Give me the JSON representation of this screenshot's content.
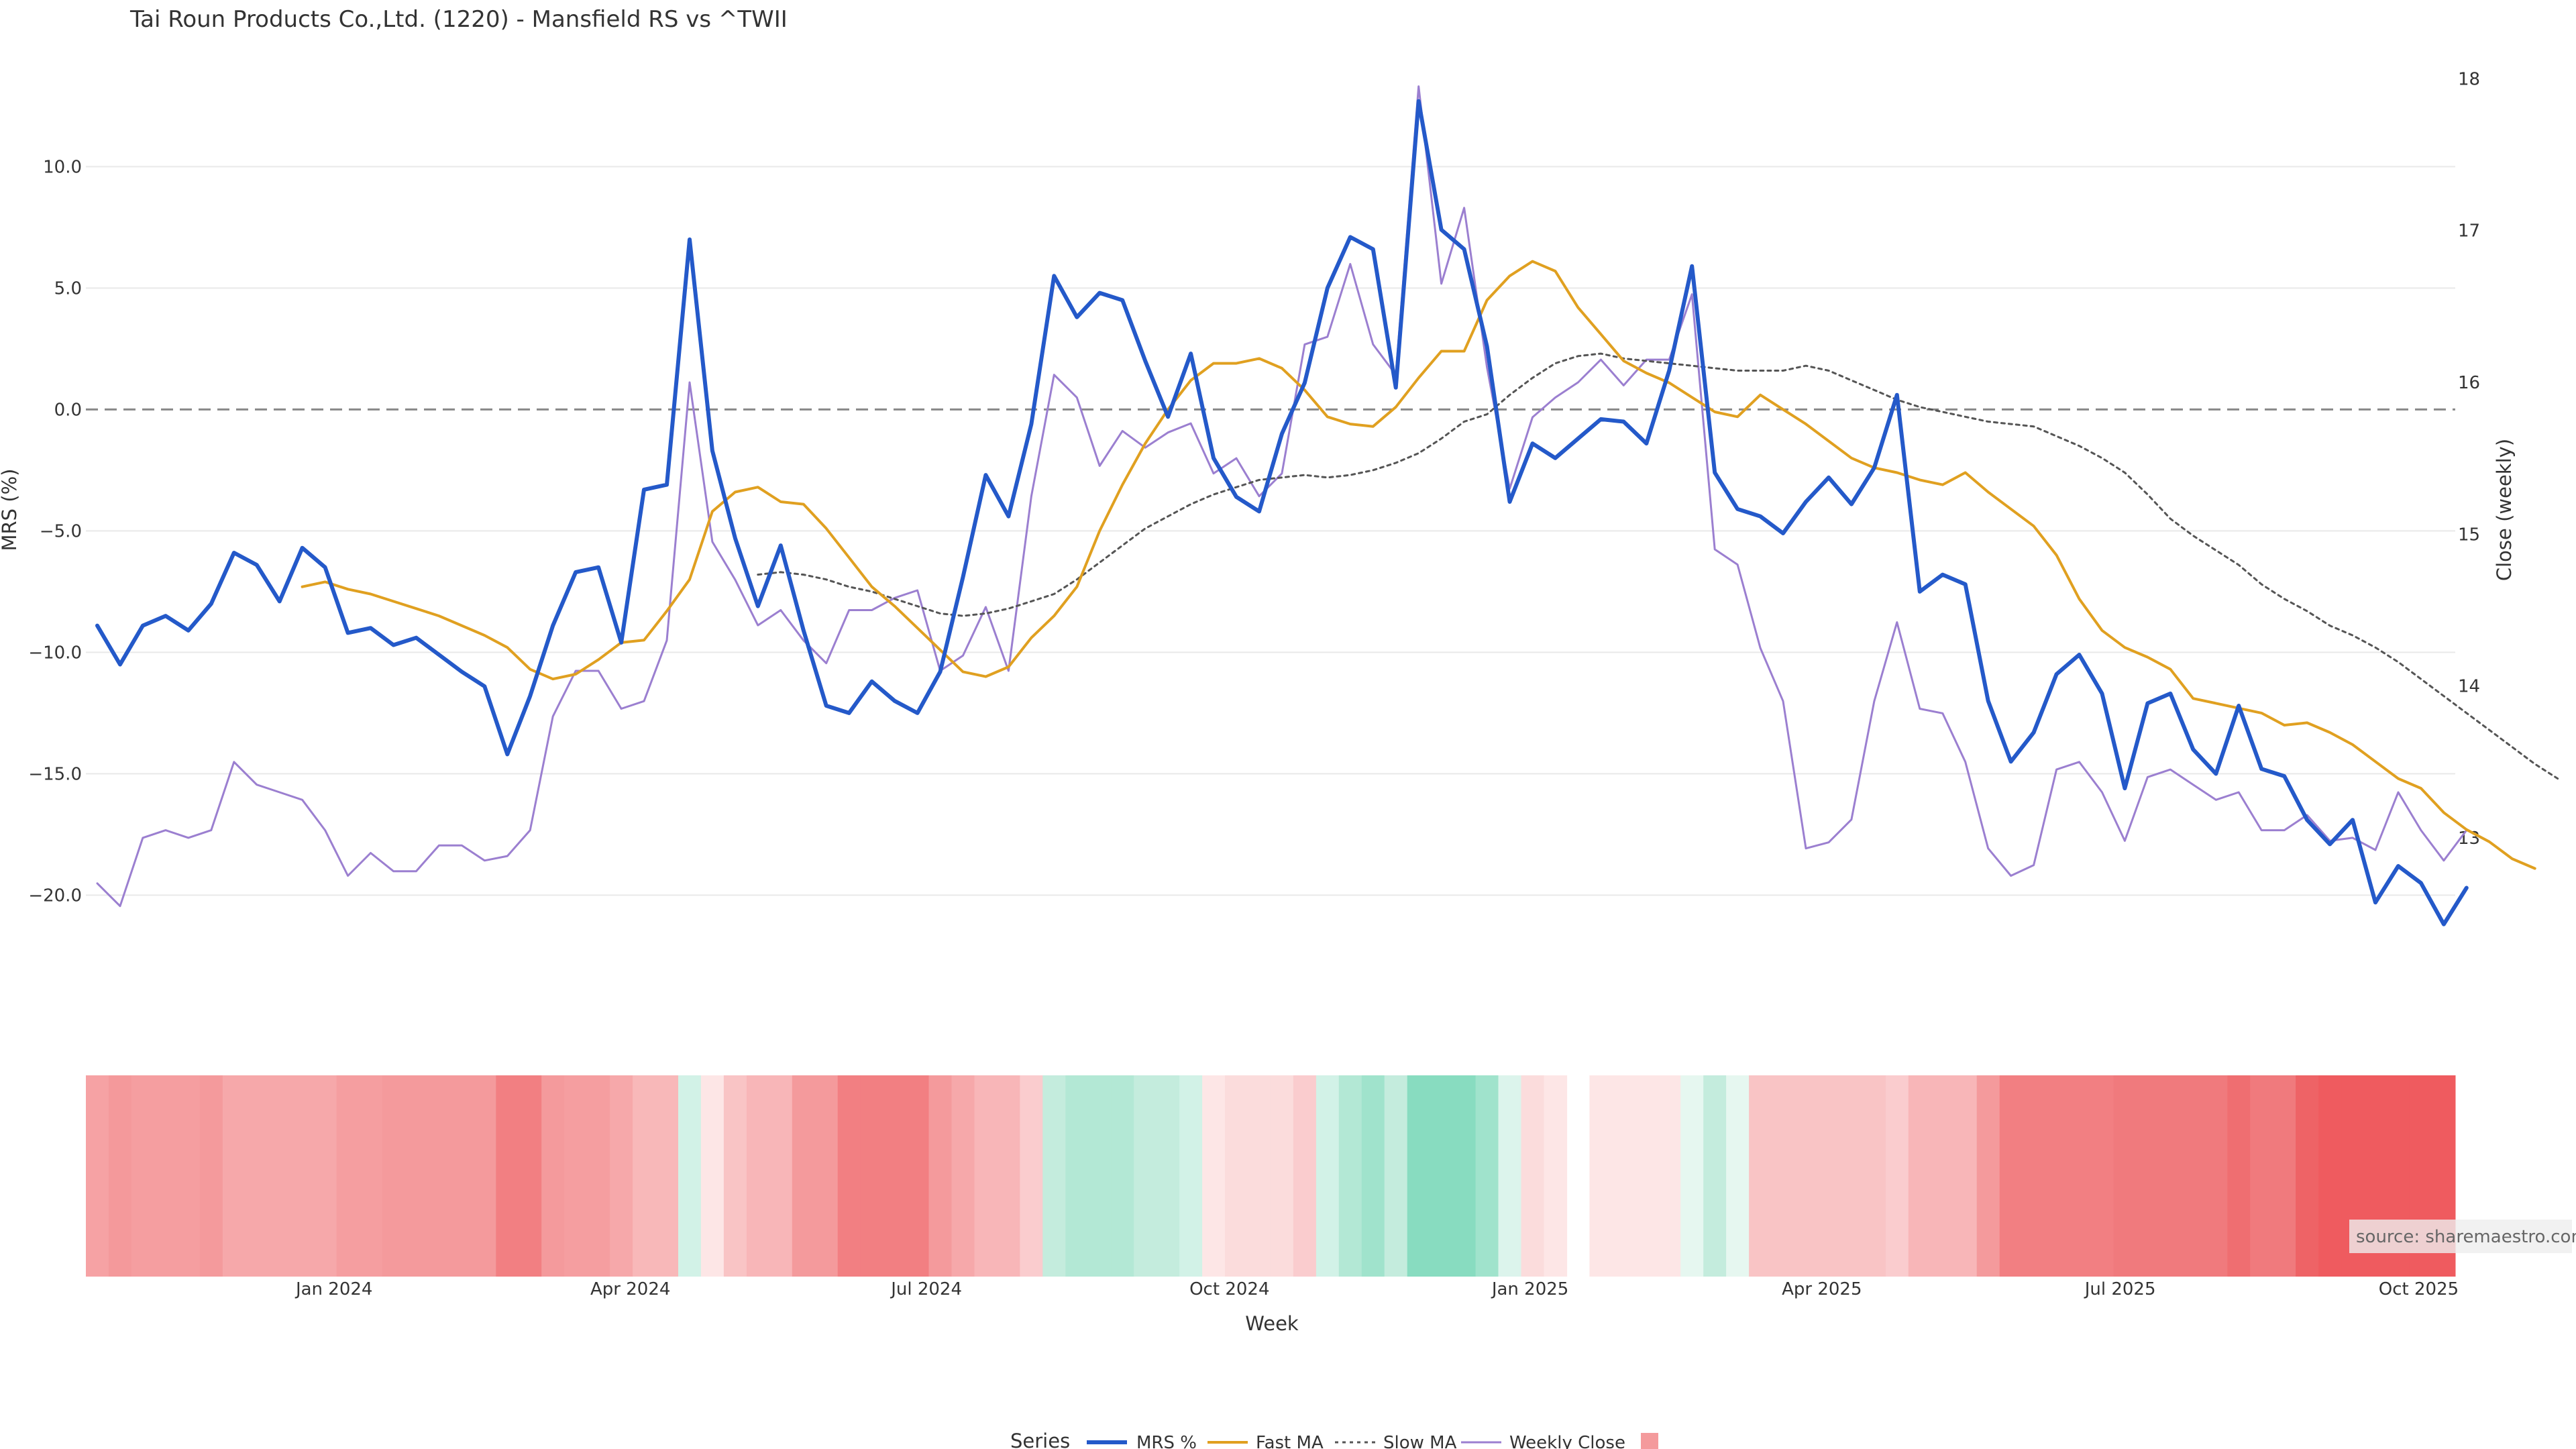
{
  "chart_data": {
    "type": "line",
    "title": "Tai Roun Products Co.,Ltd. (1220) - Mansfield RS vs ^TWII",
    "xlabel": "Week",
    "ylabel_left": "MRS (%)",
    "ylabel_right": "Close (weekly)",
    "ylim_left": [
      -22.5,
      13.0
    ],
    "ylim_right": [
      12.3,
      18.2
    ],
    "yticks_left": [
      10.0,
      5.0,
      0.0,
      -5.0,
      -10.0,
      -15.0,
      -20.0
    ],
    "yticks_left_labels": [
      "10.0",
      "5.0",
      "0.0",
      "−5.0",
      "−10.0",
      "−15.0",
      "−20.0"
    ],
    "yticks_right": [
      18,
      17,
      16,
      15,
      14,
      13
    ],
    "xticks": [
      10.4,
      23.4,
      36.4,
      49.7,
      62.9,
      75.7,
      88.8,
      101.9
    ],
    "xtick_labels": [
      "Jan 2024",
      "Apr 2024",
      "Jul 2024",
      "Oct 2024",
      "Jan 2025",
      "Apr 2025",
      "Jul 2025",
      "Oct 2025"
    ],
    "grid": true,
    "zero_line": true,
    "series": [
      {
        "name": "MRS %",
        "axis": "left",
        "color": "#2459c9",
        "style": "solid",
        "values": [
          -8.9,
          -10.5,
          -8.9,
          -8.5,
          -9.1,
          -8.0,
          -5.9,
          -6.4,
          -7.9,
          -5.7,
          -6.5,
          -9.2,
          -9.0,
          -9.7,
          -9.4,
          -10.1,
          -10.8,
          -11.4,
          -14.2,
          -11.8,
          -8.9,
          -6.7,
          -6.5,
          -9.6,
          -3.3,
          -3.1,
          7.0,
          -1.7,
          -5.3,
          -8.1,
          -5.6,
          -9.1,
          -12.2,
          -12.5,
          -11.2,
          -12.0,
          -12.5,
          -10.8,
          -6.9,
          -2.7,
          -4.4,
          -0.6,
          5.5,
          3.8,
          4.8,
          4.5,
          2.0,
          -0.3,
          2.3,
          -2.0,
          -3.6,
          -4.2,
          -1.0,
          1.1,
          5.0,
          7.1,
          6.6,
          0.9,
          12.7,
          7.4,
          6.6,
          2.6,
          -3.8,
          -1.4,
          -2.0,
          -1.2,
          -0.4,
          -0.5,
          -1.4,
          1.6,
          5.9,
          -2.6,
          -4.1,
          -4.4,
          -5.1,
          -3.8,
          -2.8,
          -3.9,
          -2.4,
          0.6,
          -7.5,
          -6.8,
          -7.2,
          -12.0,
          -14.5,
          -13.3,
          -10.9,
          -10.1,
          -11.7,
          -15.6,
          -12.1,
          -11.7,
          -14.0,
          -15.0,
          -12.2,
          -14.8,
          -15.1,
          -16.9,
          -17.9,
          -16.9,
          -20.3,
          -18.8,
          -19.5,
          -21.2,
          -19.7
        ]
      },
      {
        "name": "Fast MA",
        "axis": "left",
        "color": "#e0a020",
        "style": "solid",
        "start_index": 9,
        "values": [
          -7.3,
          -7.1,
          -7.4,
          -7.6,
          -7.9,
          -8.2,
          -8.5,
          -8.9,
          -9.3,
          -9.8,
          -10.7,
          -11.1,
          -10.9,
          -10.3,
          -9.6,
          -9.5,
          -8.3,
          -7.0,
          -4.2,
          -3.4,
          -3.2,
          -3.8,
          -3.9,
          -4.9,
          -6.1,
          -7.3,
          -8.1,
          -9.0,
          -9.9,
          -10.8,
          -11.0,
          -10.6,
          -9.4,
          -8.5,
          -7.3,
          -5.0,
          -3.1,
          -1.4,
          0.0,
          1.2,
          1.9,
          1.9,
          2.1,
          1.7,
          0.8,
          -0.3,
          -0.6,
          -0.7,
          0.1,
          1.3,
          2.4,
          2.4,
          4.5,
          5.5,
          6.1,
          5.7,
          4.2,
          3.1,
          2.0,
          1.5,
          1.1,
          0.5,
          -0.1,
          -0.3,
          0.6,
          0.0,
          -0.6,
          -1.3,
          -2.0,
          -2.4,
          -2.6,
          -2.9,
          -3.1,
          -2.6,
          -3.4,
          -4.1,
          -4.8,
          -6.0,
          -7.8,
          -9.1,
          -9.8,
          -10.2,
          -10.7,
          -11.9,
          -12.1,
          -12.3,
          -12.5,
          -13.0,
          -12.9,
          -13.3,
          -13.8,
          -14.5,
          -15.2,
          -15.6,
          -16.6,
          -17.3,
          -17.8,
          -18.5,
          -18.9
        ]
      },
      {
        "name": "Slow MA",
        "axis": "left",
        "color": "#555555",
        "style": "dotted",
        "start_index": 29,
        "values": [
          -6.8,
          -6.7,
          -6.8,
          -7.0,
          -7.3,
          -7.5,
          -7.8,
          -8.1,
          -8.4,
          -8.5,
          -8.4,
          -8.2,
          -7.9,
          -7.6,
          -7.0,
          -6.3,
          -5.6,
          -4.9,
          -4.4,
          -3.9,
          -3.5,
          -3.2,
          -2.9,
          -2.8,
          -2.7,
          -2.8,
          -2.7,
          -2.5,
          -2.2,
          -1.8,
          -1.2,
          -0.5,
          -0.2,
          0.6,
          1.3,
          1.9,
          2.2,
          2.3,
          2.1,
          2.0,
          1.9,
          1.8,
          1.7,
          1.6,
          1.6,
          1.6,
          1.8,
          1.6,
          1.2,
          0.8,
          0.4,
          0.1,
          -0.1,
          -0.3,
          -0.5,
          -0.6,
          -0.7,
          -1.1,
          -1.5,
          -2.0,
          -2.6,
          -3.5,
          -4.5,
          -5.2,
          -5.8,
          -6.4,
          -7.2,
          -7.8,
          -8.3,
          -8.9,
          -9.3,
          -9.8,
          -10.4,
          -11.1,
          -11.8,
          -12.5,
          -13.2,
          -13.9,
          -14.6,
          -15.2
        ]
      },
      {
        "name": "Weekly Close",
        "axis": "right",
        "color": "#9b7fd0",
        "style": "solid",
        "values": [
          12.7,
          12.55,
          13.0,
          13.05,
          13.0,
          13.05,
          13.5,
          13.35,
          13.3,
          13.25,
          13.05,
          12.75,
          12.9,
          12.78,
          12.78,
          12.95,
          12.95,
          12.85,
          12.88,
          13.05,
          13.8,
          14.1,
          14.1,
          13.85,
          13.9,
          14.3,
          16.0,
          14.95,
          14.7,
          14.4,
          14.5,
          14.3,
          14.15,
          14.5,
          14.5,
          14.58,
          14.63,
          14.1,
          14.2,
          14.52,
          14.1,
          15.25,
          16.05,
          15.9,
          15.45,
          15.68,
          15.57,
          15.67,
          15.73,
          15.4,
          15.5,
          15.25,
          15.4,
          16.25,
          16.3,
          16.78,
          16.25,
          16.05,
          17.95,
          16.65,
          17.15,
          16.1,
          15.3,
          15.77,
          15.9,
          16.0,
          16.15,
          15.98,
          16.15,
          16.15,
          16.58,
          14.9,
          14.8,
          14.25,
          13.9,
          12.93,
          12.97,
          13.12,
          13.9,
          14.42,
          13.85,
          13.82,
          13.5,
          12.93,
          12.75,
          12.82,
          13.45,
          13.5,
          13.3,
          12.98,
          13.4,
          13.45,
          13.35,
          13.25,
          13.3,
          13.05,
          13.05,
          13.15,
          12.98,
          13.0,
          12.92,
          13.3,
          13.05,
          12.85,
          13.05
        ]
      }
    ],
    "heatmap": {
      "description": "weekly strength strip",
      "gap_index": 65,
      "colors": [
        "#f6a2a4",
        "#f4999b",
        "#f59ea0",
        "#f59ea0",
        "#f59ea0",
        "#f49a9c",
        "#f6a8aa",
        "#f6a8aa",
        "#f6a8aa",
        "#f6a8aa",
        "#f6a8aa",
        "#f59ea0",
        "#f59ea0",
        "#f49a9c",
        "#f49a9c",
        "#f49a9c",
        "#f49a9c",
        "#f49a9c",
        "#f27f82",
        "#f27f82",
        "#f49a9c",
        "#f59ea0",
        "#f59ea0",
        "#f6a8aa",
        "#f8b8b9",
        "#f8b8b9",
        "#d2f2e7",
        "#fde6e6",
        "#f9c4c5",
        "#f8b6b8",
        "#f8b6b8",
        "#f49a9c",
        "#f49a9c",
        "#f27f82",
        "#f27f82",
        "#f27f82",
        "#f27f82",
        "#f49a9c",
        "#f6a8aa",
        "#f8b6b8",
        "#f8b6b8",
        "#faccce",
        "#c4ecdd",
        "#b3e8d5",
        "#b3e8d5",
        "#b3e8d5",
        "#c4ecdd",
        "#c4ecdd",
        "#d2f2e7",
        "#fde6e6",
        "#fbdcdc",
        "#fbdcdc",
        "#fbdcdc",
        "#faccce",
        "#d2f2e7",
        "#b3e8d5",
        "#a0e3cc",
        "#c4ecdd",
        "#88dcc0",
        "#88dcc0",
        "#88dcc0",
        "#a0e3cc",
        "#dcf4ec",
        "#fbdcdc",
        "#fde6e6",
        "#ffffff",
        "#fde6e6",
        "#fde6e6",
        "#fde6e6",
        "#fde6e6",
        "#e6f7f0",
        "#c4ecdd",
        "#e6f7f0",
        "#f9c4c5",
        "#f9c4c5",
        "#f9c4c5",
        "#f9c4c5",
        "#f9c4c5",
        "#f9c4c5",
        "#faccce",
        "#f8b6b8",
        "#f8b6b8",
        "#f8b6b8",
        "#f49a9c",
        "#f27f82",
        "#f27f82",
        "#f27f82",
        "#f27f82",
        "#f27f82",
        "#f07a7d",
        "#f07a7d",
        "#f07a7d",
        "#f07a7d",
        "#f07a7d",
        "#ef6e71",
        "#f07a7d",
        "#f07a7d",
        "#ee6366",
        "#ef5b5f",
        "#ef5b5f",
        "#ef5b5f",
        "#ef5b5f",
        "#ef5b5f",
        "#ef5b5f",
        "#ef5b5f"
      ]
    },
    "legend": {
      "title": "Series",
      "position": "bottom-center",
      "items": [
        "MRS %",
        "Fast MA",
        "Slow MA",
        "Weekly Close",
        ""
      ]
    },
    "source": "source: sharemaestro.com"
  },
  "colors": {
    "mrs": "#2459c9",
    "fast": "#e0a020",
    "slow": "#555555",
    "close": "#9b7fd0",
    "legend_swatch": "#f49a9c",
    "grid": "#e9e9e9",
    "zero": "#888888"
  }
}
